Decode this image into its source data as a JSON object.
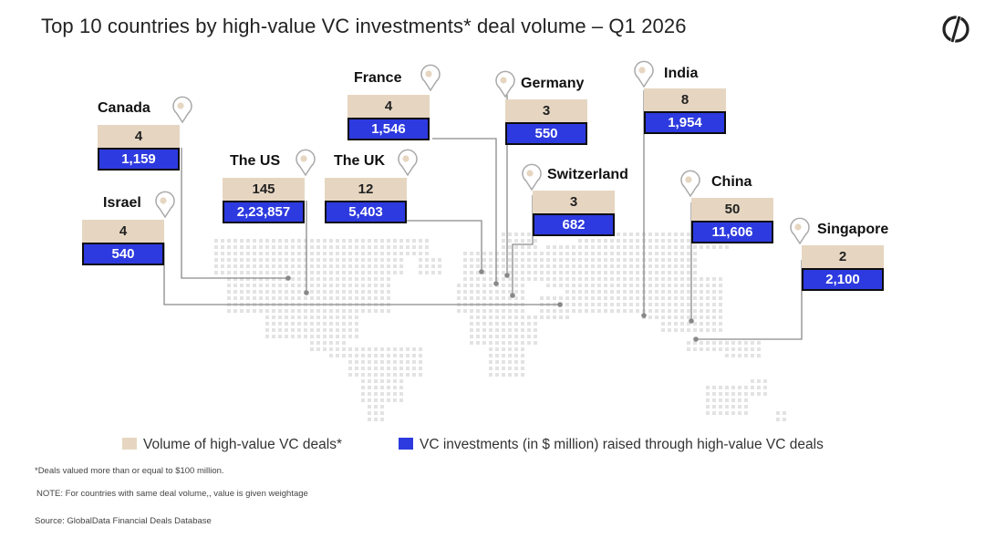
{
  "title": "Top 10 countries by high-value VC investments* deal volume – Q1 2026",
  "colors": {
    "volume": "#e6d6c1",
    "investment": "#2d3adf",
    "connector": "#8a8a8a",
    "map_dot": "#e3e3e3"
  },
  "chart_data": {
    "type": "table",
    "title": "Top 10 countries by high-value VC investments* deal volume – Q1 2026",
    "categories": [
      "Canada",
      "Israel",
      "The US",
      "The UK",
      "France",
      "Germany",
      "Switzerland",
      "India",
      "China",
      "Singapore"
    ],
    "series": [
      {
        "name": "Volume of high-value VC deals*",
        "values": [
          4,
          4,
          145,
          12,
          4,
          3,
          3,
          8,
          50,
          2
        ]
      },
      {
        "name": "VC investments (in $ million) raised through high-value VC deals",
        "values": [
          1159,
          540,
          223857,
          5403,
          1546,
          550,
          682,
          1954,
          11606,
          2100
        ]
      }
    ],
    "value_labels": [
      {
        "volume": "4",
        "investment": "1,159"
      },
      {
        "volume": "4",
        "investment": "540"
      },
      {
        "volume": "145",
        "investment": "2,23,857"
      },
      {
        "volume": "12",
        "investment": "5,403"
      },
      {
        "volume": "4",
        "investment": "1,546"
      },
      {
        "volume": "3",
        "investment": "550"
      },
      {
        "volume": "3",
        "investment": "682"
      },
      {
        "volume": "8",
        "investment": "1,954"
      },
      {
        "volume": "50",
        "investment": "11,606"
      },
      {
        "volume": "2",
        "investment": "2,100"
      }
    ]
  },
  "legend": {
    "volume_label": "Volume of high-value VC deals*",
    "investment_label": "VC investments (in $ million) raised through high-value VC deals"
  },
  "notes": {
    "footnote": "*Deals valued more than or equal to $100 million.",
    "note": "NOTE: For countries with same deal volume,, value is given weightage",
    "source": "Source: GlobalData Financial Deals Database"
  }
}
